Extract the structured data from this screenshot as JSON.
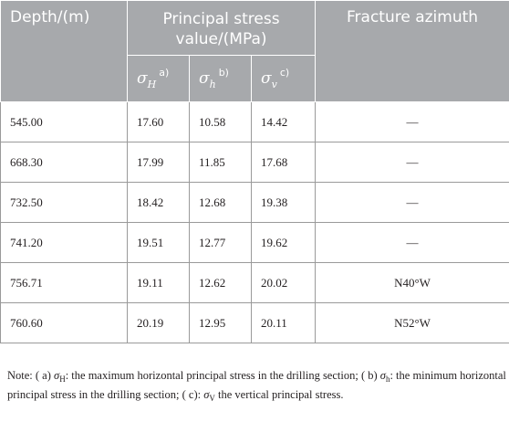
{
  "header": {
    "depth": "Depth/(m)",
    "stress_group": "Principal stress value/(MPa)",
    "azimuth": "Fracture azimuth",
    "sigma_H": {
      "symbol": "σ",
      "sub": "H",
      "note": "a)"
    },
    "sigma_h": {
      "symbol": "σ",
      "sub": "h",
      "note": "b)"
    },
    "sigma_v": {
      "symbol": "σ",
      "sub": "v",
      "note": "c)"
    }
  },
  "rows": [
    {
      "depth": "545.00",
      "sH": "17.60",
      "sh": "10.58",
      "sv": "14.42",
      "azimuth": "—"
    },
    {
      "depth": "668.30",
      "sH": "17.99",
      "sh": "11.85",
      "sv": "17.68",
      "azimuth": "—"
    },
    {
      "depth": "732.50",
      "sH": "18.42",
      "sh": "12.68",
      "sv": "19.38",
      "azimuth": "—"
    },
    {
      "depth": "741.20",
      "sH": "19.51",
      "sh": "12.77",
      "sv": "19.62",
      "azimuth": "—"
    },
    {
      "depth": "756.71",
      "sH": "19.11",
      "sh": "12.62",
      "sv": "20.02",
      "azimuth": "N40°W"
    },
    {
      "depth": "760.60",
      "sH": "20.19",
      "sh": "12.95",
      "sv": "20.11",
      "azimuth": "N52°W"
    }
  ],
  "note": {
    "prefix": "Note: ( a) ",
    "a_symbol": "σ",
    "a_sub": "H",
    "a_text": ": the maximum horizontal principal stress in the drilling section; ( b) ",
    "b_symbol": "σ",
    "b_sub": "h",
    "b_text": ": the minimum horizontal principal stress in the drilling section; ( c): ",
    "c_symbol": "σ",
    "c_sub": "V",
    "c_text": " the vertical principal stress."
  }
}
